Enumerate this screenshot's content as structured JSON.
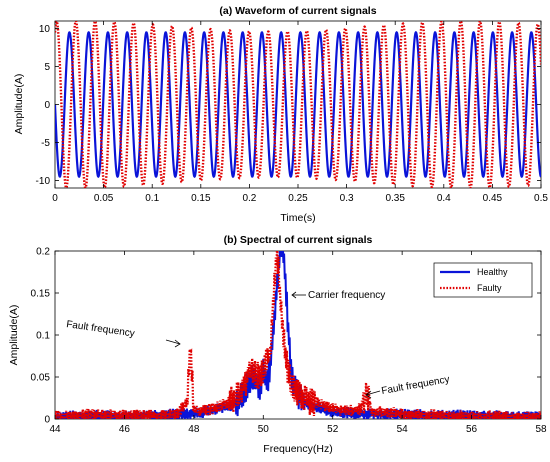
{
  "chart_data": [
    {
      "type": "line",
      "title": "(a) Waveform of current signals",
      "xlabel": "Time(s)",
      "ylabel": "Amplitude(A)",
      "xlim": [
        0,
        0.5
      ],
      "ylim": [
        -11,
        11
      ],
      "x_ticks": [
        "0",
        "0.05",
        "0.1",
        "0.15",
        "0.2",
        "0.25",
        "0.3",
        "0.35",
        "0.4",
        "0.45",
        "0.5"
      ],
      "y_ticks": [
        "10",
        "5",
        "0",
        "-5",
        "-10"
      ],
      "grid": false,
      "series": [
        {
          "color": "#0a14d8",
          "style": "solid",
          "amplitude": 9.5,
          "frequency_hz": 50.5,
          "phase_deg": 180
        },
        {
          "color": "#e00000",
          "style": "dotted",
          "amplitude_min": 9.6,
          "amplitude_max": 11,
          "frequency_hz": 50.5,
          "phase_deg": 60
        }
      ]
    },
    {
      "type": "line",
      "title": "(b) Spectral of current signals",
      "xlabel": "Frequency(Hz)",
      "ylabel": "Amplitude(A)",
      "xlim": [
        44,
        58
      ],
      "ylim": [
        0,
        0.2
      ],
      "x_ticks": [
        "44",
        "46",
        "48",
        "50",
        "52",
        "54",
        "56",
        "58"
      ],
      "y_ticks": [
        "0.2",
        "0.15",
        "0.1",
        "0.05",
        "0"
      ],
      "grid": false,
      "legend": {
        "placement": "top-right",
        "entries": [
          "Healthy",
          "Faulty"
        ]
      },
      "annotations": [
        "Carrier frequency",
        "Fault frequency",
        "Fault frequency"
      ],
      "series": [
        {
          "name": "Healthy",
          "color": "#0a14d8",
          "style": "solid",
          "x": [
            44.0,
            45.0,
            46.0,
            47.0,
            48.0,
            48.5,
            49.0,
            49.3,
            49.5,
            49.7,
            49.9,
            50.0,
            50.1,
            50.2,
            50.3,
            50.4,
            50.5,
            50.6,
            50.7,
            50.8,
            50.9,
            51.0,
            51.2,
            51.5,
            52.0,
            53.0,
            54.0,
            55.0,
            56.0,
            57.0,
            58.0
          ],
          "y": [
            0.002,
            0.004,
            0.003,
            0.005,
            0.006,
            0.01,
            0.015,
            0.022,
            0.035,
            0.05,
            0.04,
            0.055,
            0.045,
            0.06,
            0.11,
            0.16,
            0.205,
            0.19,
            0.12,
            0.055,
            0.04,
            0.03,
            0.02,
            0.015,
            0.008,
            0.006,
            0.005,
            0.004,
            0.004,
            0.003,
            0.002
          ]
        },
        {
          "name": "Faulty",
          "color": "#e00000",
          "style": "dotted",
          "x": [
            44.0,
            45.0,
            46.0,
            47.0,
            47.5,
            47.8,
            47.9,
            48.0,
            48.5,
            49.0,
            49.3,
            49.5,
            49.6,
            49.8,
            50.0,
            50.2,
            50.3,
            50.4,
            50.5,
            50.6,
            50.7,
            50.8,
            51.0,
            51.2,
            51.5,
            52.0,
            52.5,
            52.8,
            53.0,
            53.1,
            53.5,
            54.0,
            55.0,
            56.0,
            57.0,
            58.0
          ],
          "y": [
            0.003,
            0.005,
            0.004,
            0.004,
            0.005,
            0.02,
            0.09,
            0.01,
            0.012,
            0.02,
            0.03,
            0.045,
            0.06,
            0.05,
            0.06,
            0.08,
            0.15,
            0.2,
            0.14,
            0.09,
            0.06,
            0.045,
            0.03,
            0.025,
            0.02,
            0.012,
            0.01,
            0.012,
            0.032,
            0.01,
            0.008,
            0.006,
            0.004,
            0.003,
            0.003,
            0.002
          ]
        }
      ]
    }
  ]
}
